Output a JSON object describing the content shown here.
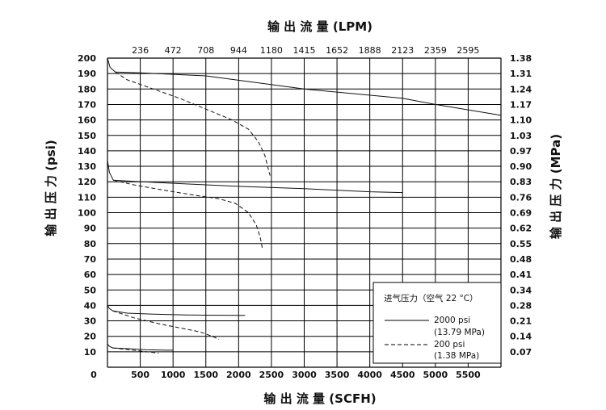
{
  "chart_data": {
    "type": "line",
    "title": "",
    "xlabel_bottom": "输 出 流 量 (SCFH)",
    "xlabel_top": "输 出 流 量 (LPM)",
    "ylabel_left": "输 出 压 力 (psi)",
    "ylabel_right": "输 出 压 力 (MPa)",
    "xlim": [
      0,
      6000
    ],
    "ylim": [
      0,
      200
    ],
    "x_ticks_bottom": [
      {
        "value": 0,
        "label": "0"
      },
      {
        "value": 500,
        "label": "500"
      },
      {
        "value": 1000,
        "label": "1000"
      },
      {
        "value": 1500,
        "label": "1500"
      },
      {
        "value": 2000,
        "label": "2000"
      },
      {
        "value": 2500,
        "label": "2500"
      },
      {
        "value": 3000,
        "label": "3000"
      },
      {
        "value": 3500,
        "label": "3500"
      },
      {
        "value": 4000,
        "label": "4000"
      },
      {
        "value": 4500,
        "label": "4500"
      },
      {
        "value": 5000,
        "label": "5000"
      },
      {
        "value": 5500,
        "label": "5500"
      }
    ],
    "x_ticks_top": [
      {
        "value": 500,
        "label": "236"
      },
      {
        "value": 1000,
        "label": "472"
      },
      {
        "value": 1500,
        "label": "708"
      },
      {
        "value": 2000,
        "label": "944"
      },
      {
        "value": 2500,
        "label": "1180"
      },
      {
        "value": 3000,
        "label": "1415"
      },
      {
        "value": 3500,
        "label": "1652"
      },
      {
        "value": 4000,
        "label": "1888"
      },
      {
        "value": 4500,
        "label": "2123"
      },
      {
        "value": 5000,
        "label": "2359"
      },
      {
        "value": 5500,
        "label": "2595"
      }
    ],
    "y_ticks_left": [
      {
        "value": 10,
        "label": "10"
      },
      {
        "value": 20,
        "label": "20"
      },
      {
        "value": 30,
        "label": "30"
      },
      {
        "value": 40,
        "label": "40"
      },
      {
        "value": 50,
        "label": "50"
      },
      {
        "value": 60,
        "label": "60"
      },
      {
        "value": 70,
        "label": "70"
      },
      {
        "value": 80,
        "label": "80"
      },
      {
        "value": 90,
        "label": "90"
      },
      {
        "value": 100,
        "label": "100"
      },
      {
        "value": 110,
        "label": "110"
      },
      {
        "value": 120,
        "label": "120"
      },
      {
        "value": 130,
        "label": "130"
      },
      {
        "value": 140,
        "label": "140"
      },
      {
        "value": 150,
        "label": "150"
      },
      {
        "value": 160,
        "label": "160"
      },
      {
        "value": 170,
        "label": "170"
      },
      {
        "value": 180,
        "label": "180"
      },
      {
        "value": 190,
        "label": "190"
      },
      {
        "value": 200,
        "label": "200"
      }
    ],
    "y_tick_zero": "0",
    "y_ticks_right": [
      {
        "value": 10,
        "label": "0.07"
      },
      {
        "value": 20,
        "label": "0.14"
      },
      {
        "value": 30,
        "label": "0.21"
      },
      {
        "value": 40,
        "label": "0.28"
      },
      {
        "value": 50,
        "label": "0.34"
      },
      {
        "value": 60,
        "label": "0.41"
      },
      {
        "value": 70,
        "label": "0.48"
      },
      {
        "value": 80,
        "label": "0.55"
      },
      {
        "value": 90,
        "label": "0.62"
      },
      {
        "value": 100,
        "label": "0.69"
      },
      {
        "value": 110,
        "label": "0.76"
      },
      {
        "value": 120,
        "label": "0.83"
      },
      {
        "value": 130,
        "label": "0.90"
      },
      {
        "value": 140,
        "label": "0.97"
      },
      {
        "value": 150,
        "label": "1.03"
      },
      {
        "value": 160,
        "label": "1.10"
      },
      {
        "value": 170,
        "label": "1.17"
      },
      {
        "value": 180,
        "label": "1.24"
      },
      {
        "value": 190,
        "label": "1.31"
      },
      {
        "value": 200,
        "label": "1.38"
      }
    ],
    "grid": true,
    "legend": {
      "placement": "bottom-right",
      "title": "进气压力（空气 22 °C）",
      "entries": [
        {
          "style": "solid",
          "line1": "2000 psi",
          "line2": "(13.79 MPa)"
        },
        {
          "style": "dashed",
          "line1": "200 psi",
          "line2": "(1.38 MPa)"
        }
      ]
    },
    "series": [
      {
        "style": "solid",
        "points": [
          [
            0,
            200
          ],
          [
            40,
            194
          ],
          [
            120,
            191
          ],
          [
            500,
            190.5
          ],
          [
            1500,
            188.5
          ],
          [
            3000,
            180
          ],
          [
            4500,
            174
          ],
          [
            5000,
            170
          ],
          [
            6000,
            163
          ]
        ]
      },
      {
        "style": "dashed",
        "points": [
          [
            120,
            191
          ],
          [
            300,
            186
          ],
          [
            700,
            180
          ],
          [
            1100,
            174
          ],
          [
            1500,
            167
          ],
          [
            1900,
            160
          ],
          [
            2150,
            154
          ],
          [
            2300,
            146
          ],
          [
            2400,
            137
          ],
          [
            2460,
            127
          ],
          [
            2480,
            124
          ]
        ]
      },
      {
        "style": "solid",
        "points": [
          [
            0,
            134
          ],
          [
            30,
            126
          ],
          [
            90,
            121
          ],
          [
            300,
            120.5
          ],
          [
            1000,
            119
          ],
          [
            2000,
            117
          ],
          [
            3000,
            115.5
          ],
          [
            4000,
            113.5
          ],
          [
            4500,
            113
          ]
        ]
      },
      {
        "style": "dashed",
        "points": [
          [
            90,
            121
          ],
          [
            400,
            118
          ],
          [
            800,
            115
          ],
          [
            1300,
            111.5
          ],
          [
            1700,
            109
          ],
          [
            1950,
            106
          ],
          [
            2150,
            100
          ],
          [
            2270,
            92
          ],
          [
            2330,
            84
          ],
          [
            2360,
            77
          ]
        ]
      },
      {
        "style": "solid",
        "points": [
          [
            0,
            40
          ],
          [
            30,
            38
          ],
          [
            80,
            36.5
          ],
          [
            300,
            35
          ],
          [
            700,
            34.3
          ],
          [
            1200,
            33.8
          ],
          [
            2000,
            33.5
          ],
          [
            2100,
            33.5
          ]
        ]
      },
      {
        "style": "dashed",
        "points": [
          [
            80,
            36.5
          ],
          [
            400,
            32
          ],
          [
            800,
            28
          ],
          [
            1100,
            25.5
          ],
          [
            1400,
            23
          ],
          [
            1600,
            20
          ],
          [
            1700,
            18
          ]
        ]
      },
      {
        "style": "solid",
        "points": [
          [
            0,
            15
          ],
          [
            30,
            13.5
          ],
          [
            80,
            12.5
          ],
          [
            300,
            12
          ],
          [
            600,
            11.3
          ],
          [
            900,
            11
          ],
          [
            1000,
            11
          ]
        ]
      },
      {
        "style": "dashed",
        "points": [
          [
            80,
            12.5
          ],
          [
            300,
            11.5
          ],
          [
            500,
            10.5
          ],
          [
            700,
            9.5
          ],
          [
            780,
            9
          ]
        ]
      }
    ]
  }
}
